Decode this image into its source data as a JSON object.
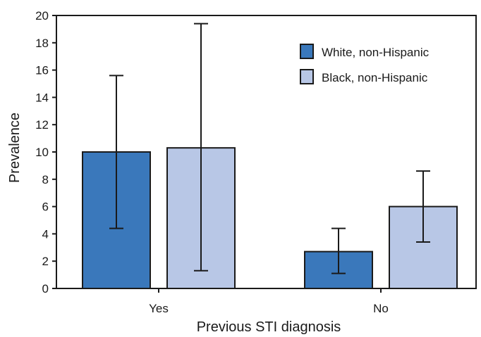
{
  "chart_data": {
    "type": "bar",
    "xlabel": "Previous STI diagnosis",
    "ylabel": "Prevalence",
    "ylim": [
      0,
      20
    ],
    "yticks": [
      0,
      2,
      4,
      6,
      8,
      10,
      12,
      14,
      16,
      18,
      20
    ],
    "grid": false,
    "legend_position": "top-right",
    "categories": [
      "Yes",
      "No"
    ],
    "series": [
      {
        "name": "White, non-Hispanic",
        "color": "#3a78bb",
        "values": [
          10.0,
          2.7
        ],
        "ci_lower": [
          4.4,
          1.1
        ],
        "ci_upper": [
          15.6,
          4.4
        ]
      },
      {
        "name": "Black, non-Hispanic",
        "color": "#b8c7e6",
        "values": [
          10.3,
          6.0
        ],
        "ci_lower": [
          1.3,
          3.4
        ],
        "ci_upper": [
          19.4,
          8.6
        ]
      }
    ]
  }
}
